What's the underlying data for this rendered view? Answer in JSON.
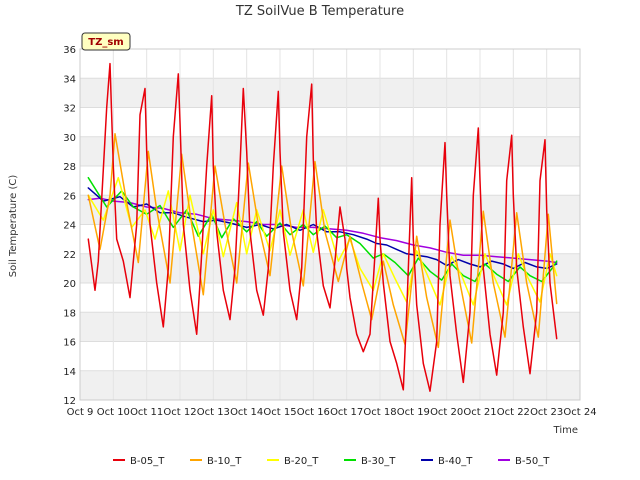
{
  "chart_data": {
    "type": "line",
    "title": "TZ SoilVue B Temperature",
    "xlabel": "Time",
    "ylabel": "Soil Temperature (C)",
    "badge": "TZ_sm",
    "xlim": [
      9,
      24
    ],
    "ylim": [
      12,
      36
    ],
    "xticks": [
      9,
      10,
      11,
      12,
      13,
      14,
      15,
      16,
      17,
      18,
      19,
      20,
      21,
      22,
      23,
      24
    ],
    "xtick_labels": [
      "Oct 9",
      "Oct 10",
      "Oct 11",
      "Oct 12",
      "Oct 13",
      "Oct 14",
      "Oct 15",
      "Oct 16",
      "Oct 17",
      "Oct 18",
      "Oct 19",
      "Oct 20",
      "Oct 21",
      "Oct 22",
      "Oct 23",
      "Oct 24"
    ],
    "yticks": [
      12,
      14,
      16,
      18,
      20,
      22,
      24,
      26,
      28,
      30,
      32,
      34,
      36
    ],
    "grid": true,
    "legend_position": "bottom",
    "series": [
      {
        "name": "B-05_T",
        "color": "#e8000b",
        "x": [
          9.25,
          9.45,
          9.55,
          9.8,
          9.9,
          10.0,
          10.1,
          10.3,
          10.5,
          10.7,
          10.8,
          10.95,
          11.0,
          11.1,
          11.3,
          11.5,
          11.65,
          11.8,
          11.95,
          12.0,
          12.1,
          12.3,
          12.5,
          12.6,
          12.8,
          12.95,
          13.0,
          13.1,
          13.3,
          13.5,
          13.65,
          13.8,
          13.9,
          14.0,
          14.1,
          14.3,
          14.5,
          14.65,
          14.8,
          14.95,
          15.0,
          15.1,
          15.3,
          15.5,
          15.65,
          15.8,
          15.95,
          16.0,
          16.1,
          16.3,
          16.5,
          16.65,
          16.8,
          16.95,
          17.0,
          17.1,
          17.3,
          17.5,
          17.7,
          17.85,
          17.95,
          18.0,
          18.1,
          18.3,
          18.5,
          18.7,
          18.8,
          18.95,
          19.0,
          19.1,
          19.3,
          19.5,
          19.7,
          19.8,
          19.95,
          20.0,
          20.1,
          20.3,
          20.5,
          20.7,
          20.8,
          20.95,
          21.0,
          21.1,
          21.3,
          21.5,
          21.7,
          21.8,
          21.95,
          22.0,
          22.1,
          22.3,
          22.5,
          22.7,
          22.8,
          22.95,
          23.0,
          23.1,
          23.3
        ],
        "y": [
          23,
          19.5,
          21.5,
          32,
          35,
          28,
          23,
          21.5,
          19,
          24,
          31.5,
          33.3,
          29,
          24,
          20,
          17,
          21,
          30,
          34.3,
          31,
          24,
          19.5,
          16.5,
          20,
          28,
          32.8,
          28,
          23.5,
          19.5,
          17.5,
          21,
          28,
          33.3,
          29,
          23.5,
          19.5,
          17.8,
          21,
          28,
          33.1,
          29,
          23.5,
          19.5,
          17.5,
          21,
          30,
          33.6,
          28.5,
          23.5,
          19.8,
          18.3,
          21.5,
          25.2,
          23,
          21,
          19,
          16.5,
          15.3,
          16.5,
          22,
          25.8,
          23,
          20,
          16,
          14.5,
          12.7,
          18,
          27.2,
          23,
          18.5,
          14.5,
          12.6,
          16,
          24,
          29.6,
          26,
          20.5,
          16.5,
          13.2,
          18,
          26,
          30.6,
          27,
          21,
          16.5,
          13.7,
          18,
          27,
          30.1,
          26,
          21,
          17,
          13.8,
          18,
          27,
          29.8,
          25,
          20,
          16.2
        ]
      },
      {
        "name": "B-10_T",
        "color": "#ffa500",
        "x": [
          9.25,
          9.6,
          9.9,
          10.05,
          10.4,
          10.75,
          11.05,
          11.3,
          11.7,
          12.05,
          12.35,
          12.7,
          13.05,
          13.35,
          13.7,
          14.05,
          14.35,
          14.7,
          15.05,
          15.35,
          15.7,
          16.05,
          16.35,
          16.75,
          17.1,
          17.45,
          17.75,
          18.1,
          18.4,
          18.75,
          19.1,
          19.4,
          19.75,
          20.1,
          20.4,
          20.75,
          21.1,
          21.4,
          21.75,
          22.1,
          22.4,
          22.75,
          23.05,
          23.3
        ],
        "y": [
          26,
          22.3,
          26,
          30.2,
          25.5,
          21.4,
          29,
          25,
          20,
          28.8,
          24,
          19.2,
          28,
          24,
          20,
          28.2,
          24,
          20.5,
          28,
          23.5,
          19.8,
          28.3,
          23.5,
          20.1,
          23.2,
          20,
          17.5,
          21.5,
          18.5,
          15.8,
          23.2,
          19,
          15.6,
          24.3,
          20,
          15.9,
          24.9,
          20,
          16.3,
          24.8,
          20,
          16.3,
          24.7,
          18.6
        ]
      },
      {
        "name": "B-20_T",
        "color": "#ffff00",
        "x": [
          9.25,
          9.7,
          10.15,
          10.55,
          10.95,
          11.25,
          11.65,
          12.0,
          12.3,
          12.7,
          13.0,
          13.3,
          13.7,
          14.0,
          14.3,
          14.7,
          15.0,
          15.3,
          15.7,
          16.0,
          16.3,
          16.75,
          17.1,
          17.4,
          17.8,
          18.1,
          18.45,
          18.8,
          19.1,
          19.45,
          19.8,
          20.15,
          20.45,
          20.8,
          21.15,
          21.45,
          21.8,
          22.15,
          22.45,
          22.8,
          23.1,
          23.3
        ],
        "y": [
          26,
          24.3,
          27.2,
          23.8,
          25,
          23,
          26.3,
          22.2,
          26,
          22,
          25,
          21.8,
          25.5,
          22,
          25,
          22.2,
          25,
          21.9,
          25,
          22.1,
          25,
          21.5,
          23,
          21,
          19.5,
          22,
          20.3,
          18.7,
          22.2,
          20.4,
          18.5,
          21.8,
          20.5,
          18.5,
          22,
          20.3,
          18.5,
          22,
          20.3,
          18.7,
          22,
          20.5
        ]
      },
      {
        "name": "B-30_T",
        "color": "#00e000",
        "x": [
          9.25,
          9.8,
          10.25,
          10.6,
          11.0,
          11.4,
          11.8,
          12.2,
          12.55,
          12.95,
          13.25,
          13.6,
          14.0,
          14.3,
          14.6,
          15.0,
          15.3,
          15.7,
          16.0,
          16.35,
          16.7,
          17.0,
          17.4,
          17.8,
          18.1,
          18.45,
          18.85,
          19.15,
          19.5,
          19.85,
          20.15,
          20.5,
          20.85,
          21.15,
          21.5,
          21.85,
          22.2,
          22.5,
          22.85,
          23.2,
          23.3
        ],
        "y": [
          27.2,
          25.2,
          26.3,
          25.2,
          24.7,
          25.3,
          23.8,
          25,
          23.2,
          24.7,
          23.1,
          24.4,
          23.5,
          24.2,
          23.2,
          24.1,
          23.3,
          24,
          23.3,
          23.9,
          23.1,
          23.3,
          22.7,
          21.7,
          22,
          21.4,
          20.5,
          21.7,
          20.8,
          20.2,
          21.3,
          20.5,
          20.1,
          21.3,
          20.6,
          20.1,
          21.1,
          20.5,
          20.1,
          21.1,
          21.5
        ]
      },
      {
        "name": "B-40_T",
        "color": "#0000aa",
        "x": [
          9.25,
          9.7,
          10.2,
          10.6,
          11.0,
          11.4,
          11.8,
          12.2,
          12.7,
          13.1,
          13.5,
          14.0,
          14.4,
          14.8,
          15.2,
          15.6,
          16.0,
          16.4,
          16.8,
          17.2,
          17.6,
          17.9,
          18.2,
          18.5,
          18.8,
          19.1,
          19.4,
          19.7,
          20.0,
          20.35,
          20.7,
          21.0,
          21.35,
          21.7,
          22.0,
          22.35,
          22.7,
          23.0,
          23.3
        ],
        "y": [
          26.5,
          25.6,
          25.9,
          25.2,
          25.4,
          24.8,
          24.8,
          24.5,
          24.2,
          24.3,
          24.1,
          23.8,
          24.0,
          23.7,
          24.0,
          23.6,
          24.0,
          23.5,
          23.5,
          23.3,
          23.0,
          22.7,
          22.6,
          22.3,
          22.0,
          21.9,
          21.8,
          21.6,
          21.2,
          21.6,
          21.3,
          21.1,
          21.5,
          21.3,
          21.0,
          21.4,
          21.1,
          21.0,
          21.3
        ]
      },
      {
        "name": "B-50_T",
        "color": "#a000e0",
        "x": [
          9.25,
          9.6,
          10.0,
          10.5,
          11.0,
          11.5,
          12.0,
          12.5,
          13.0,
          13.5,
          14.0,
          14.5,
          15.0,
          15.5,
          16.0,
          16.5,
          17.0,
          17.5,
          18.0,
          18.5,
          19.0,
          19.5,
          20.0,
          20.5,
          21.0,
          21.5,
          22.0,
          22.5,
          23.0,
          23.3
        ],
        "y": [
          25.7,
          25.8,
          25.6,
          25.5,
          25.2,
          25.1,
          24.8,
          24.7,
          24.4,
          24.3,
          24.2,
          24.0,
          24.0,
          23.8,
          23.8,
          23.7,
          23.6,
          23.4,
          23.1,
          22.9,
          22.6,
          22.4,
          22.1,
          21.9,
          21.9,
          21.8,
          21.7,
          21.6,
          21.5,
          21.4
        ]
      }
    ]
  }
}
